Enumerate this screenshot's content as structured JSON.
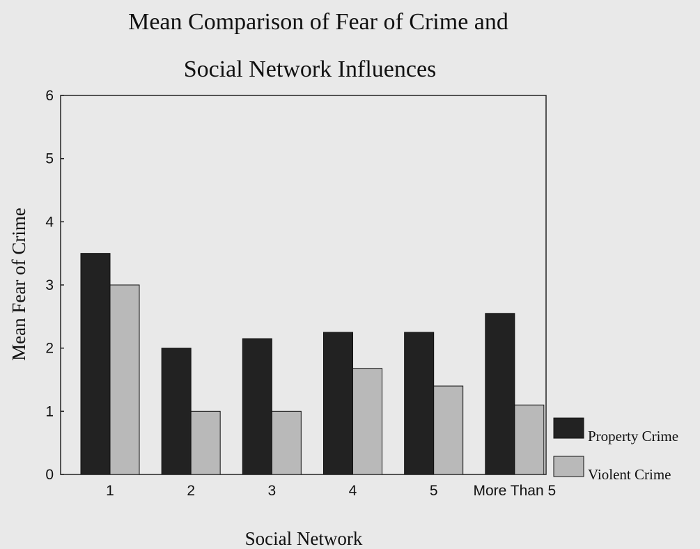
{
  "chart_data": {
    "type": "bar",
    "title_lines": [
      "Mean Comparison of Fear of Crime and",
      "Social Network Influences"
    ],
    "xlabel": "Social Network",
    "ylabel": "Mean Fear of Crime",
    "categories": [
      "1",
      "2",
      "3",
      "4",
      "5",
      "More Than 5"
    ],
    "series": [
      {
        "name": "Property Crime",
        "values": [
          3.5,
          2.0,
          2.15,
          2.25,
          2.25,
          2.55
        ],
        "color": "#222222"
      },
      {
        "name": "Violent Crime",
        "values": [
          3.0,
          1.0,
          1.0,
          1.68,
          1.4,
          1.1
        ],
        "color": "#b9b9b9"
      }
    ],
    "ylim": [
      0,
      6
    ],
    "yticks": [
      0,
      1,
      2,
      3,
      4,
      5,
      6
    ],
    "grid": false,
    "legend_position": "bottom-right"
  }
}
